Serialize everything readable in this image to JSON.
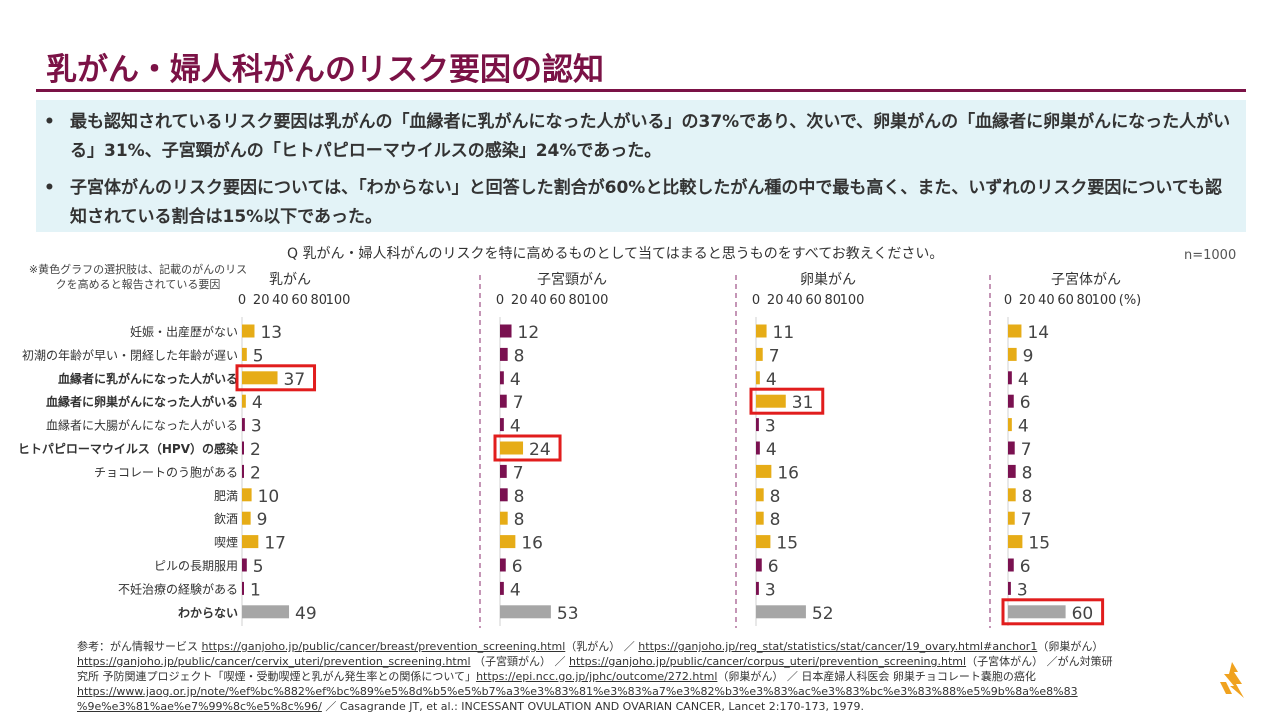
{
  "title": "乳がん・婦人科がんのリスク要因の認知",
  "summary": [
    "最も認知されているリスク要因は乳がんの「血縁者に乳がんになった人がいる」の37%であり、次いで、卵巣がんの「血縁者に卵巣がんになった人がいる」31%、子宮頸がんの「ヒトパピローマウイルスの感染」24%であった。",
    "子宮体がんのリスク要因については、「わからない」と回答した割合が60%と比較したがん種の中で最も高く、また、いずれのリスク要因についても認知されている割合は15%以下であった。"
  ],
  "bullet": "•",
  "question": "Q 乳がん・婦人科がんのリスクを特に高めるものとして当てはまると思うものをすべてお教えください。",
  "n_note": "n=1000",
  "footnote": "※黄色グラフの選択肢は、記載のがんのリスクを高めると報告されている要因",
  "colors": {
    "title": "#7b1246",
    "risk": "#e6ac17",
    "nonrisk": "#7a1150",
    "unknown": "#a6a6a6",
    "highlight": "#e11d1d",
    "divider": "#9e4f86"
  },
  "chart_data": {
    "type": "bar",
    "orientation": "horizontal",
    "title": "Q 乳がん・婦人科がんのリスクを特に高めるものとして当てはまると思うものをすべてお教えください。",
    "xlim": [
      0,
      100
    ],
    "ticks": [
      "0",
      "20",
      "40",
      "60",
      "80",
      "100"
    ],
    "unit_label": "(%)",
    "categories": [
      "妊娠・出産歴がない",
      "初潮の年齢が早い・閉経した年齢が遅い",
      "血縁者に乳がんになった人がいる",
      "血縁者に卵巣がんになった人がいる",
      "血縁者に大腸がんになった人がいる",
      "ヒトパピローマウイルス（HPV）の感染",
      "チョコレートのう胞がある",
      "肥満",
      "飲酒",
      "喫煙",
      "ピルの長期服用",
      "不妊治療の経験がある",
      "わからない"
    ],
    "bold_categories": [
      2,
      3,
      5,
      12
    ],
    "series": [
      {
        "name": "乳がん",
        "values": [
          13,
          5,
          37,
          4,
          3,
          2,
          2,
          10,
          9,
          17,
          5,
          1,
          49
        ],
        "risk_factor": [
          true,
          true,
          true,
          true,
          false,
          false,
          false,
          true,
          true,
          true,
          false,
          false,
          false
        ],
        "highlight": [
          2
        ]
      },
      {
        "name": "子宮頸がん",
        "values": [
          12,
          8,
          4,
          7,
          4,
          24,
          7,
          8,
          8,
          16,
          6,
          4,
          53
        ],
        "risk_factor": [
          false,
          false,
          false,
          false,
          false,
          true,
          false,
          false,
          true,
          true,
          false,
          false,
          false
        ],
        "highlight": [
          5
        ]
      },
      {
        "name": "卵巣がん",
        "values": [
          11,
          7,
          4,
          31,
          3,
          4,
          16,
          8,
          8,
          15,
          6,
          3,
          52
        ],
        "risk_factor": [
          true,
          true,
          true,
          true,
          false,
          false,
          true,
          true,
          true,
          true,
          false,
          false,
          false
        ],
        "highlight": [
          3
        ]
      },
      {
        "name": "子宮体がん",
        "values": [
          14,
          9,
          4,
          6,
          4,
          7,
          8,
          8,
          7,
          15,
          6,
          3,
          60
        ],
        "risk_factor": [
          true,
          true,
          false,
          false,
          true,
          false,
          false,
          true,
          true,
          true,
          false,
          false,
          false
        ],
        "highlight": [
          12
        ]
      }
    ]
  },
  "refs": {
    "l1_pre": "参考：がん情報サービス ",
    "l1_u1": "https://ganjoho.jp/public/cancer/breast/prevention_screening.html",
    "l1_mid": "（乳がん） ／ ",
    "l1_u2": "https://ganjoho.jp/reg_stat/statistics/stat/cancer/19_ovary.html#anchor1",
    "l1_post": "（卵巣がん）",
    "l2_u1": "https://ganjoho.jp/public/cancer/cervix_uteri/prevention_screening.html",
    "l2_mid": " （子宮頸がん） ／ ",
    "l2_u2": "https://ganjoho.jp/public/cancer/corpus_uteri/prevention_screening.html",
    "l2_post": "（子宮体がん） ／がん対策研",
    "l3_pre": "究所 予防関連プロジェクト「喫煙・受動喫煙と乳がん発生率との関係について」",
    "l3_u1": "https://epi.ncc.go.jp/jphc/outcome/272.html",
    "l3_post": "（卵巣がん） ／ 日本産婦人科医会 卵巣チョコレート嚢胞の癌化",
    "l4_u1": "https://www.jaog.or.jp/note/%ef%bc%882%ef%bc%89%e5%8d%b5%e5%b7%a3%e3%83%81%e3%83%a7%e3%82%b3%e3%83%ac%e3%83%bc%e3%83%88%e5%9b%8a%e8%83",
    "l5_u1": "%9e%e3%81%ae%e7%99%8c%e5%8c%96/",
    "l5_post": " ／ Casagrande JT, et al.: INCESSANT OVULATION AND OVARIAN CANCER, Lancet 2:170-173, 1979."
  }
}
